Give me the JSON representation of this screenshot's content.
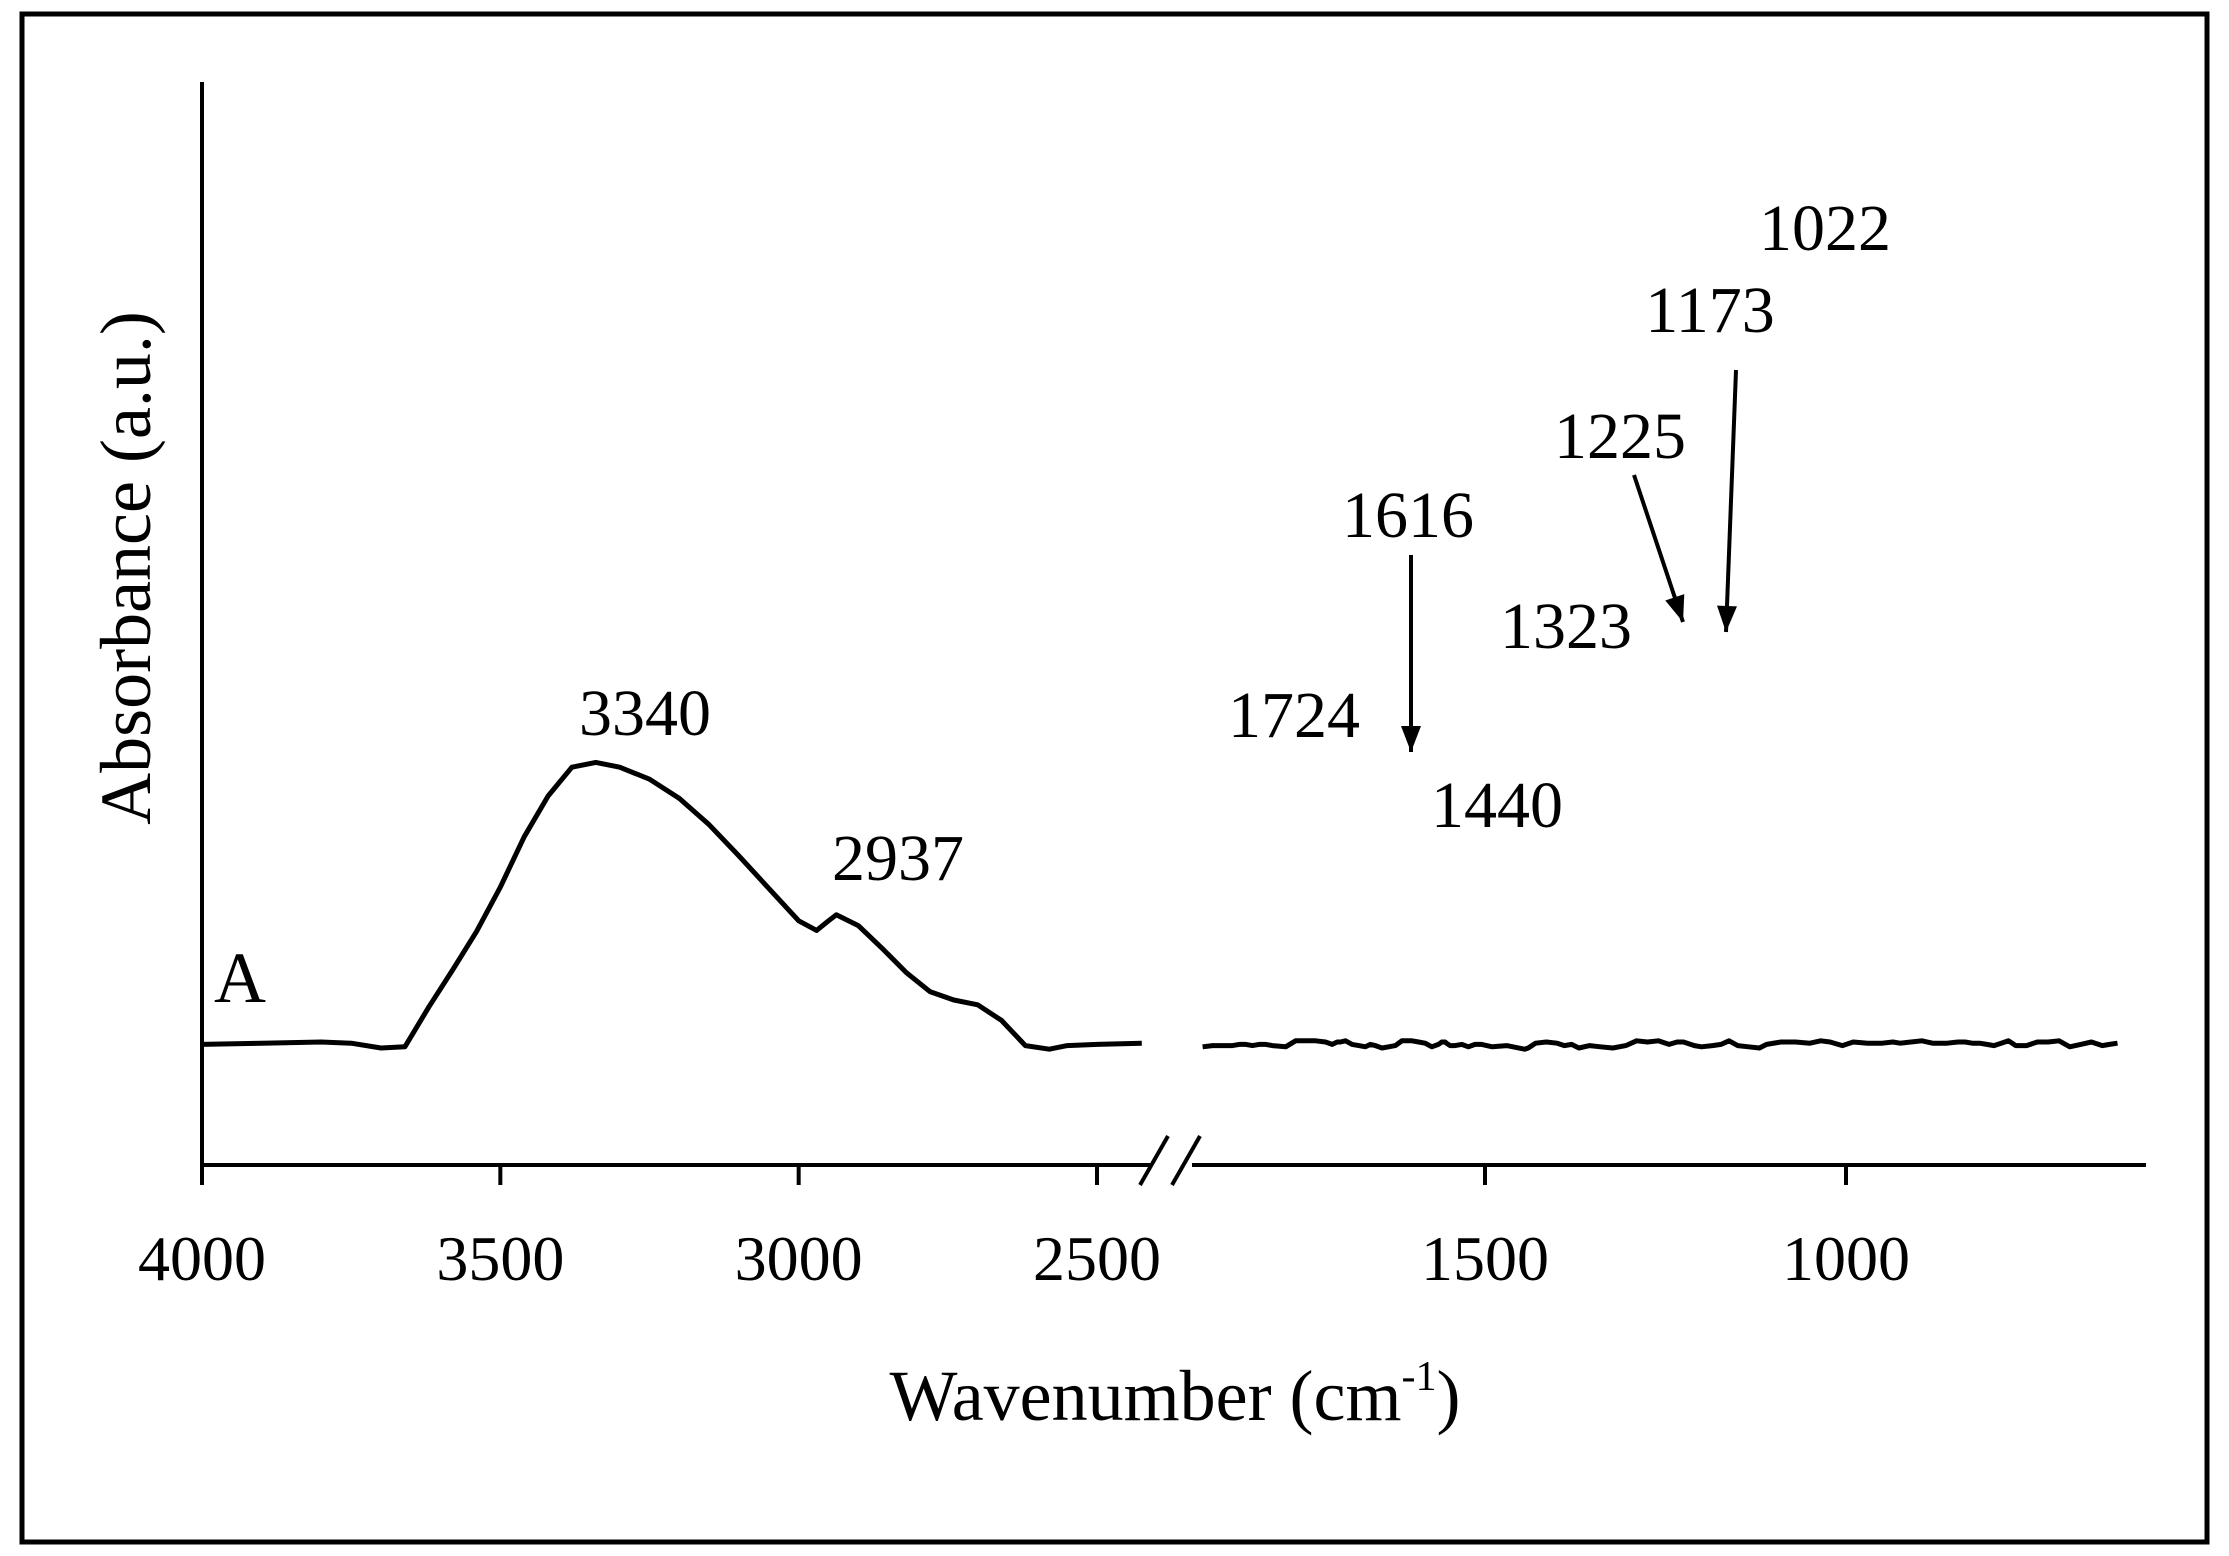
{
  "chart_data": {
    "type": "line",
    "xlabel": "Wavenumber (cm",
    "xlabel_superscript": "-1",
    "xlabel_close": ")",
    "ylabel": "Absorbance (a.u.)",
    "panel_label": "A",
    "x_axis_reversed": true,
    "x_axis_break": [
      2425,
      2375
    ],
    "xlim": [
      4000,
      624
    ],
    "ylim": [
      0,
      1
    ],
    "grid": false,
    "legend": "none",
    "color": "#000000",
    "x_tick_labels": [
      "4000",
      "3500",
      "3000",
      "2500",
      "1500",
      "1000"
    ],
    "x_tick_values": [
      4000,
      3500,
      3000,
      2500,
      1500,
      1000
    ],
    "peak_labels": [
      "3340",
      "2937",
      "1724",
      "1616",
      "1440",
      "1323",
      "1225",
      "1173",
      "1022"
    ],
    "peak_values": [
      3340,
      2937,
      1724,
      1616,
      1440,
      1323,
      1225,
      1173,
      1022
    ],
    "series": [
      {
        "segments": [
          {
            "x": [
              4000,
              3900,
              3800,
              3750,
              3700,
              3660,
              3620,
              3580,
              3540,
              3500,
              3460,
              3420,
              3380,
              3340,
              3300,
              3250,
              3200,
              3150,
              3100,
              3050,
              3000,
              2970,
              2950,
              2937,
              2900,
              2860,
              2820,
              2780,
              2740,
              2700,
              2660,
              2620,
              2580,
              2550,
              2500,
              2450
            ],
            "y": [
              0.133,
              0.134,
              0.135,
              0.134,
              0.13,
              0.131,
              0.164,
              0.195,
              0.227,
              0.264,
              0.306,
              0.34,
              0.364,
              0.368,
              0.364,
              0.354,
              0.338,
              0.316,
              0.29,
              0.263,
              0.236,
              0.228,
              0.236,
              0.241,
              0.232,
              0.213,
              0.193,
              0.177,
              0.17,
              0.166,
              0.153,
              0.132,
              0.129,
              0.132,
              0.133,
              0.134
            ]
          },
          {
            "x": [
              2350,
              2320,
              2290,
              2260,
              2240,
              2220,
              2200,
              2180,
              2160,
              2140,
              2100,
              2070,
              2040,
              2010,
              1980,
              1960,
              1945,
              1935,
              1920,
              1900,
              1880,
              1860,
              1845,
              1830,
              1810,
              1790,
              1770,
              1750,
              1720,
              1700,
              1680,
              1660,
              1640,
              1630,
              1620,
              1616,
              1605,
              1590,
              1570,
              1550,
              1530,
              1510,
              1490,
              1470,
              1445,
              1440,
              1430,
              1415,
              1400,
              1390,
              1380,
              1370,
              1355,
              1340,
              1323,
              1305,
              1290,
              1275,
              1260,
              1245,
              1234,
              1225,
              1210,
              1200,
              1185,
              1173,
              1162,
              1150,
              1135,
              1120,
              1110,
              1090,
              1070,
              1050,
              1035,
              1022,
              1005,
              990,
              970,
              950,
              935,
              925,
              910,
              895,
              880,
              860,
              845,
              835,
              825,
              815,
              805,
              795,
              785,
              775,
              765,
              750,
              735,
              720,
              705,
              690,
              675,
              660,
              645,
              635,
              624
            ],
            "y": [
              0.131,
              0.132,
              0.132,
              0.132,
              0.133,
              0.133,
              0.132,
              0.133,
              0.133,
              0.132,
              0.131,
              0.136,
              0.136,
              0.136,
              0.135,
              0.133,
              0.135,
              0.135,
              0.136,
              0.133,
              0.132,
              0.131,
              0.133,
              0.132,
              0.13,
              0.131,
              0.132,
              0.136,
              0.136,
              0.135,
              0.134,
              0.131,
              0.133,
              0.135,
              0.135,
              0.134,
              0.132,
              0.132,
              0.133,
              0.131,
              0.133,
              0.133,
              0.131,
              0.132,
              0.129,
              0.13,
              0.134,
              0.135,
              0.134,
              0.132,
              0.133,
              0.13,
              0.132,
              0.131,
              0.13,
              0.132,
              0.136,
              0.135,
              0.136,
              0.133,
              0.135,
              0.135,
              0.132,
              0.131,
              0.132,
              0.133,
              0.136,
              0.132,
              0.131,
              0.13,
              0.133,
              0.135,
              0.135,
              0.134,
              0.136,
              0.135,
              0.132,
              0.135,
              0.134,
              0.134,
              0.135,
              0.134,
              0.135,
              0.136,
              0.134,
              0.134,
              0.135,
              0.135,
              0.134,
              0.134,
              0.133,
              0.132,
              0.134,
              0.136,
              0.132,
              0.132,
              0.135,
              0.135,
              0.136,
              0.131,
              0.133,
              0.135,
              0.132,
              0.133,
              0.134
            ]
          }
        ]
      }
    ]
  }
}
